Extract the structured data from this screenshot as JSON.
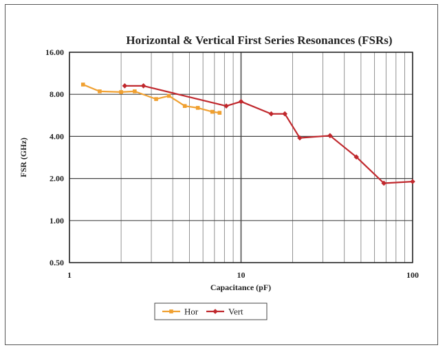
{
  "chart_data": {
    "type": "line",
    "title": "Horizontal & Vertical First Series Resonances (FSRs)",
    "xlabel": "Capacitance (pF)",
    "ylabel": "FSR (GHz)",
    "xscale": "log",
    "yscale": "log",
    "xlim": [
      1,
      100
    ],
    "ylim": [
      0.5,
      16
    ],
    "x_ticks": [
      "1",
      "10",
      "100"
    ],
    "y_ticks": [
      "0.50",
      "1.00",
      "2.00",
      "4.00",
      "8.00",
      "16.00"
    ],
    "grid": true,
    "legend_position": "bottom",
    "series": [
      {
        "name": "Hor",
        "color": "#f0a030",
        "marker": "square",
        "x": [
          1.2,
          1.5,
          2.0,
          2.4,
          3.2,
          3.8,
          4.7,
          5.6,
          6.8,
          7.5
        ],
        "y": [
          9.4,
          8.4,
          8.3,
          8.4,
          7.4,
          7.8,
          6.6,
          6.4,
          6.0,
          5.9
        ]
      },
      {
        "name": "Vert",
        "color": "#c0282d",
        "marker": "diamond",
        "x": [
          2.1,
          2.7,
          8.2,
          10,
          15,
          18,
          22,
          33,
          47,
          68,
          100
        ],
        "y": [
          9.2,
          9.2,
          6.6,
          7.1,
          5.8,
          5.8,
          3.9,
          4.05,
          2.85,
          1.85,
          1.9
        ]
      }
    ]
  }
}
